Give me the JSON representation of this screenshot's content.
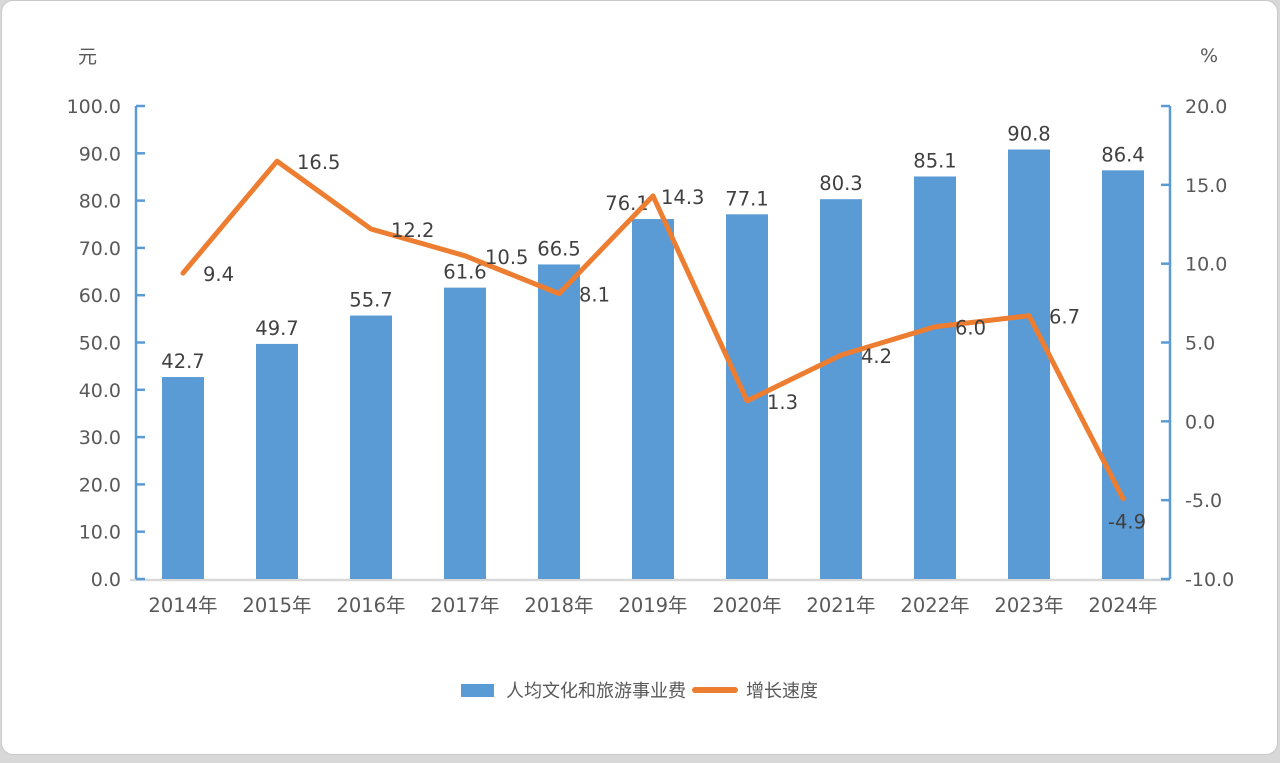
{
  "chart_data": {
    "type": "bar+line combo",
    "categories": [
      "2014年",
      "2015年",
      "2016年",
      "2017年",
      "2018年",
      "2019年",
      "2020年",
      "2021年",
      "2022年",
      "2023年",
      "2024年"
    ],
    "series": [
      {
        "name": "人均文化和旅游事业费",
        "type": "bar",
        "axis": "left",
        "color": "#5b9bd5",
        "values": [
          42.7,
          49.7,
          55.7,
          61.6,
          66.5,
          76.1,
          77.1,
          80.3,
          85.1,
          90.8,
          86.4
        ]
      },
      {
        "name": "增长速度",
        "type": "line",
        "axis": "right",
        "color": "#ed7d31",
        "values": [
          9.4,
          16.5,
          12.2,
          10.5,
          8.1,
          14.3,
          1.3,
          4.2,
          6.0,
          6.7,
          -4.9
        ]
      }
    ],
    "left_axis": {
      "unit": "元",
      "min": 0,
      "max": 100,
      "step": 10,
      "tick_values": [
        0,
        10,
        20,
        30,
        40,
        50,
        60,
        70,
        80,
        90,
        100
      ],
      "tick_labels": [
        "0.0",
        "10.0",
        "20.0",
        "30.0",
        "40.0",
        "50.0",
        "60.0",
        "70.0",
        "80.0",
        "90.0",
        "100.0"
      ]
    },
    "right_axis": {
      "unit": "%",
      "min": -10,
      "max": 20,
      "step": 5,
      "tick_values": [
        -10,
        -5,
        0,
        5,
        10,
        15,
        20
      ],
      "tick_labels": [
        "-10.0",
        "-5.0",
        "0.0",
        "5.0",
        "10.0",
        "15.0",
        "20.0"
      ]
    },
    "data_labels_shown": true,
    "grid": false,
    "legend_position": "bottom-center",
    "colors": {
      "axis_line": "#5b9bd5",
      "baseline": "#d9d9d9",
      "data_label_text": "#404040",
      "tick_label_text": "#595959",
      "category_label_text": "#595959"
    }
  },
  "legend": {
    "bar_label": "人均文化和旅游事业费",
    "line_label": "增长速度"
  }
}
